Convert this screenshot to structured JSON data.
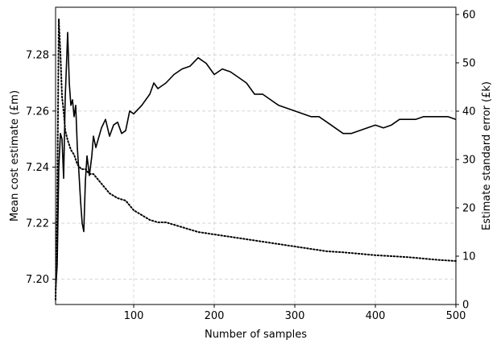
{
  "chart_data": {
    "type": "line",
    "xlabel": "Number of samples",
    "ylabel_left": "Mean cost estimate (£m)",
    "ylabel_right": "Estimate standard error (£k)",
    "xlim": [
      3,
      500
    ],
    "ylim_left": [
      7.191,
      7.297
    ],
    "ylim_right": [
      0,
      61.5
    ],
    "x_ticks": [
      100,
      200,
      300,
      400,
      500
    ],
    "y_left_ticks": [
      7.2,
      7.22,
      7.24,
      7.26,
      7.28
    ],
    "y_right_ticks": [
      0,
      10,
      20,
      30,
      40,
      50,
      60
    ],
    "grid": true,
    "series": [
      {
        "axis": "left",
        "line_style": "solid",
        "color": "#000000",
        "points": [
          [
            3,
            7.196
          ],
          [
            5,
            7.205
          ],
          [
            7,
            7.24
          ],
          [
            9,
            7.252
          ],
          [
            11,
            7.25
          ],
          [
            13,
            7.236
          ],
          [
            15,
            7.265
          ],
          [
            17,
            7.28
          ],
          [
            18,
            7.288
          ],
          [
            20,
            7.27
          ],
          [
            22,
            7.262
          ],
          [
            24,
            7.264
          ],
          [
            26,
            7.258
          ],
          [
            28,
            7.262
          ],
          [
            30,
            7.247
          ],
          [
            32,
            7.238
          ],
          [
            34,
            7.228
          ],
          [
            36,
            7.22
          ],
          [
            38,
            7.217
          ],
          [
            40,
            7.235
          ],
          [
            42,
            7.244
          ],
          [
            45,
            7.237
          ],
          [
            48,
            7.244
          ],
          [
            50,
            7.251
          ],
          [
            53,
            7.247
          ],
          [
            56,
            7.25
          ],
          [
            60,
            7.254
          ],
          [
            65,
            7.257
          ],
          [
            70,
            7.251
          ],
          [
            75,
            7.255
          ],
          [
            80,
            7.256
          ],
          [
            85,
            7.252
          ],
          [
            90,
            7.253
          ],
          [
            95,
            7.26
          ],
          [
            100,
            7.259
          ],
          [
            110,
            7.262
          ],
          [
            120,
            7.266
          ],
          [
            125,
            7.27
          ],
          [
            130,
            7.268
          ],
          [
            140,
            7.27
          ],
          [
            150,
            7.273
          ],
          [
            160,
            7.275
          ],
          [
            170,
            7.276
          ],
          [
            180,
            7.279
          ],
          [
            190,
            7.277
          ],
          [
            200,
            7.273
          ],
          [
            210,
            7.275
          ],
          [
            220,
            7.274
          ],
          [
            230,
            7.272
          ],
          [
            240,
            7.27
          ],
          [
            250,
            7.266
          ],
          [
            260,
            7.266
          ],
          [
            270,
            7.264
          ],
          [
            280,
            7.262
          ],
          [
            290,
            7.261
          ],
          [
            300,
            7.26
          ],
          [
            310,
            7.259
          ],
          [
            320,
            7.258
          ],
          [
            330,
            7.258
          ],
          [
            340,
            7.256
          ],
          [
            350,
            7.254
          ],
          [
            360,
            7.252
          ],
          [
            370,
            7.252
          ],
          [
            380,
            7.253
          ],
          [
            390,
            7.254
          ],
          [
            400,
            7.255
          ],
          [
            410,
            7.254
          ],
          [
            420,
            7.255
          ],
          [
            430,
            7.257
          ],
          [
            440,
            7.257
          ],
          [
            450,
            7.257
          ],
          [
            460,
            7.258
          ],
          [
            470,
            7.258
          ],
          [
            480,
            7.258
          ],
          [
            490,
            7.258
          ],
          [
            500,
            7.257
          ]
        ]
      },
      {
        "axis": "right",
        "line_style": "dotted",
        "color": "#000000",
        "points": [
          [
            3,
            1
          ],
          [
            5,
            20
          ],
          [
            7,
            59
          ],
          [
            9,
            52
          ],
          [
            11,
            43
          ],
          [
            13,
            40
          ],
          [
            15,
            36
          ],
          [
            18,
            34
          ],
          [
            22,
            32
          ],
          [
            26,
            31
          ],
          [
            30,
            29
          ],
          [
            35,
            28
          ],
          [
            40,
            28
          ],
          [
            45,
            27
          ],
          [
            50,
            27
          ],
          [
            55,
            26
          ],
          [
            60,
            25
          ],
          [
            70,
            23
          ],
          [
            80,
            22
          ],
          [
            90,
            21.5
          ],
          [
            100,
            19.5
          ],
          [
            110,
            18.5
          ],
          [
            120,
            17.5
          ],
          [
            130,
            17
          ],
          [
            140,
            17
          ],
          [
            150,
            16.5
          ],
          [
            160,
            16
          ],
          [
            170,
            15.5
          ],
          [
            180,
            15
          ],
          [
            200,
            14.5
          ],
          [
            220,
            14
          ],
          [
            240,
            13.5
          ],
          [
            260,
            13
          ],
          [
            280,
            12.5
          ],
          [
            300,
            12
          ],
          [
            320,
            11.5
          ],
          [
            340,
            11
          ],
          [
            360,
            10.8
          ],
          [
            380,
            10.5
          ],
          [
            400,
            10.2
          ],
          [
            420,
            10
          ],
          [
            440,
            9.8
          ],
          [
            460,
            9.5
          ],
          [
            480,
            9.2
          ],
          [
            500,
            9
          ]
        ]
      }
    ]
  }
}
